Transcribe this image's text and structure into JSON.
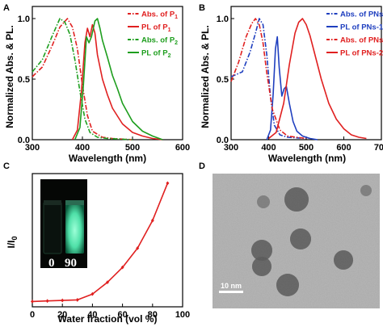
{
  "figure": {
    "panel_labels": [
      "A",
      "B",
      "C",
      "D"
    ],
    "inset_labels": [
      "0",
      "90"
    ],
    "scale_bar_label": "10 nm"
  },
  "chart_data": [
    {
      "type": "line",
      "panel": "A",
      "xlabel": "Wavelength (nm)",
      "ylabel": "Normalized Abs. & PL.",
      "xlim": [
        300,
        600
      ],
      "ylim": [
        0,
        1.1
      ],
      "xticks": [
        300,
        400,
        500,
        600
      ],
      "yticks": [
        0.0,
        0.5,
        1.0
      ],
      "legend_position": "top-right",
      "series": [
        {
          "name": "Abs. of P1",
          "legend_sub": "1",
          "color": "#e02020",
          "dash": "dashdot",
          "x": [
            300,
            320,
            340,
            355,
            370,
            380,
            390,
            400,
            410,
            420,
            440,
            460,
            500
          ],
          "y": [
            0.52,
            0.6,
            0.78,
            0.93,
            1.0,
            0.93,
            0.75,
            0.45,
            0.2,
            0.07,
            0.02,
            0.01,
            0.0
          ]
        },
        {
          "name": "PL of P1",
          "legend_sub": "1",
          "color": "#e02020",
          "dash": "solid",
          "x": [
            380,
            390,
            398,
            405,
            410,
            415,
            420,
            425,
            430,
            440,
            450,
            460,
            480,
            500,
            520,
            540,
            560
          ],
          "y": [
            0.0,
            0.08,
            0.4,
            0.8,
            0.92,
            0.85,
            0.95,
            0.88,
            0.7,
            0.5,
            0.37,
            0.26,
            0.13,
            0.06,
            0.03,
            0.01,
            0.0
          ]
        },
        {
          "name": "Abs. of P2",
          "legend_sub": "2",
          "color": "#1e9e1e",
          "dash": "dashdot",
          "x": [
            300,
            320,
            340,
            355,
            365,
            375,
            385,
            395,
            405,
            415,
            430,
            450,
            500
          ],
          "y": [
            0.56,
            0.66,
            0.86,
            1.0,
            0.97,
            0.87,
            0.66,
            0.4,
            0.17,
            0.06,
            0.02,
            0.01,
            0.0
          ]
        },
        {
          "name": "PL of P2",
          "legend_sub": "2",
          "color": "#1e9e1e",
          "dash": "solid",
          "x": [
            385,
            395,
            402,
            408,
            413,
            418,
            425,
            430,
            435,
            440,
            450,
            460,
            470,
            480,
            500,
            520,
            540,
            560
          ],
          "y": [
            0.0,
            0.1,
            0.45,
            0.85,
            0.8,
            0.85,
            0.98,
            1.0,
            0.92,
            0.82,
            0.68,
            0.53,
            0.42,
            0.3,
            0.15,
            0.07,
            0.03,
            0.0
          ]
        }
      ]
    },
    {
      "type": "line",
      "panel": "B",
      "xlabel": "Wavelength (nm)",
      "ylabel": "Normalized Abs. & PL.",
      "xlim": [
        300,
        700
      ],
      "ylim": [
        0,
        1.1
      ],
      "xticks": [
        300,
        400,
        500,
        600,
        700
      ],
      "yticks": [
        0.0,
        0.5,
        1.0
      ],
      "legend_position": "top-right",
      "series": [
        {
          "name": "Abs. of PNs-1",
          "color": "#1f3fbf",
          "dash": "dashdot",
          "x": [
            300,
            330,
            350,
            365,
            375,
            385,
            395,
            405,
            415,
            430,
            450,
            500
          ],
          "y": [
            0.52,
            0.56,
            0.72,
            0.88,
            1.0,
            0.95,
            0.7,
            0.35,
            0.12,
            0.04,
            0.02,
            0.01
          ]
        },
        {
          "name": "PL of PNs-1",
          "color": "#1f3fbf",
          "dash": "solid",
          "x": [
            395,
            405,
            412,
            418,
            423,
            428,
            435,
            441,
            447,
            455,
            465,
            475,
            490,
            510,
            530
          ],
          "y": [
            0.0,
            0.08,
            0.38,
            0.75,
            0.85,
            0.6,
            0.36,
            0.42,
            0.44,
            0.3,
            0.15,
            0.07,
            0.03,
            0.01,
            0.0
          ]
        },
        {
          "name": "Abs. of PNs-2",
          "color": "#e02020",
          "dash": "dashdot",
          "x": [
            300,
            320,
            340,
            355,
            365,
            375,
            385,
            395,
            410,
            430,
            450,
            500
          ],
          "y": [
            0.48,
            0.64,
            0.85,
            0.96,
            1.0,
            0.95,
            0.8,
            0.55,
            0.25,
            0.08,
            0.03,
            0.01
          ]
        },
        {
          "name": "PL of PNs-2",
          "color": "#e02020",
          "dash": "solid",
          "x": [
            400,
            420,
            440,
            455,
            470,
            480,
            490,
            500,
            510,
            520,
            540,
            560,
            580,
            600,
            620,
            640,
            660
          ],
          "y": [
            0.01,
            0.06,
            0.3,
            0.62,
            0.88,
            0.97,
            1.0,
            0.95,
            0.86,
            0.74,
            0.5,
            0.3,
            0.17,
            0.09,
            0.04,
            0.02,
            0.01
          ]
        }
      ]
    },
    {
      "type": "line",
      "panel": "C",
      "xlabel": "Water fraction (vol %)",
      "ylabel": "I/I",
      "ylabel_sub": "0",
      "xlim": [
        0,
        100
      ],
      "ylim": [
        0,
        25
      ],
      "xticks": [
        0,
        20,
        40,
        60,
        80,
        100
      ],
      "yticks": [],
      "markers": true,
      "series": [
        {
          "name": "",
          "color": "#e02020",
          "x": [
            0,
            10,
            20,
            30,
            40,
            50,
            60,
            70,
            80,
            90
          ],
          "y": [
            1.0,
            1.1,
            1.2,
            1.3,
            2.4,
            4.6,
            7.4,
            11.0,
            16.2,
            23.2
          ]
        }
      ]
    }
  ]
}
